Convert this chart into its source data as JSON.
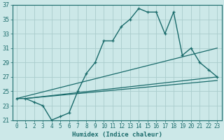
{
  "xlabel": "Humidex (Indice chaleur)",
  "bg_color": "#cce8e8",
  "grid_color": "#aacccc",
  "line_color": "#1a6b6b",
  "xlim": [
    -0.5,
    23.5
  ],
  "ylim": [
    21,
    37
  ],
  "xticks": [
    0,
    1,
    2,
    3,
    4,
    5,
    6,
    7,
    8,
    9,
    10,
    11,
    12,
    13,
    14,
    15,
    16,
    17,
    18,
    19,
    20,
    21,
    22,
    23
  ],
  "yticks": [
    21,
    23,
    25,
    27,
    29,
    31,
    33,
    35,
    37
  ],
  "hours": [
    0,
    1,
    2,
    3,
    4,
    5,
    6,
    7,
    8,
    9,
    10,
    11,
    12,
    13,
    14,
    15,
    16,
    17,
    18,
    19,
    20,
    21,
    22,
    23
  ],
  "main_values": [
    24,
    24,
    23.5,
    23,
    21,
    21.5,
    22,
    25,
    27.5,
    29,
    32,
    32,
    34,
    35,
    36.5,
    36,
    36,
    33,
    36,
    30,
    31,
    29,
    28,
    27
  ],
  "ref_lines": [
    {
      "x0": 0,
      "y0": 24,
      "x1": 23,
      "y1": 31
    },
    {
      "x0": 1,
      "y0": 24,
      "x1": 23,
      "y1": 27
    },
    {
      "x0": 1,
      "y0": 24,
      "x1": 23,
      "y1": 26.5
    }
  ]
}
